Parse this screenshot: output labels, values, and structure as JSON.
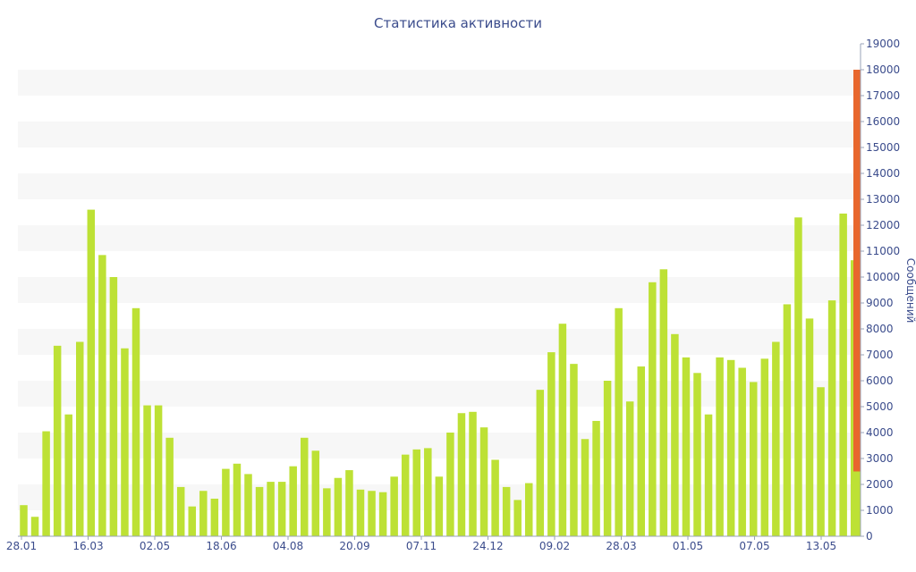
{
  "chart_data": {
    "type": "bar",
    "title": "Статистика активности",
    "ylabel": "Сообщений",
    "ylim": [
      0,
      19000
    ],
    "y_ticks": [
      0,
      1000,
      2000,
      3000,
      4000,
      5000,
      6000,
      7000,
      8000,
      9000,
      10000,
      11000,
      12000,
      13000,
      14000,
      15000,
      16000,
      17000,
      18000,
      19000
    ],
    "x_tick_labels": [
      "28.01",
      "16.03",
      "02.05",
      "18.06",
      "04.08",
      "20.09",
      "07.11",
      "24.12",
      "09.02",
      "28.03",
      "01.05",
      "07.05",
      "13.05"
    ],
    "bar_color": "#bde135",
    "grid": "alternating horizontal bands",
    "values": [
      1200,
      750,
      4050,
      7350,
      4700,
      7500,
      12600,
      10850,
      10000,
      7250,
      8800,
      5050,
      5050,
      3800,
      1900,
      1150,
      1750,
      1450,
      2600,
      2800,
      2400,
      1900,
      2100,
      2100,
      2700,
      3800,
      3300,
      1850,
      2250,
      2550,
      1800,
      1750,
      1700,
      2300,
      3150,
      3350,
      3400,
      2300,
      4000,
      4750,
      4800,
      4200,
      2950,
      1900,
      1400,
      2050,
      5650,
      7100,
      8200,
      6650,
      3750,
      4450,
      6000,
      8800,
      5200,
      6550,
      9800,
      10300,
      7800,
      6900,
      6300,
      4700,
      6900,
      6800,
      6500,
      5950,
      6850,
      7500,
      8950,
      12300,
      8400,
      5750,
      9100,
      12450,
      10650
    ],
    "highlight": {
      "color": "#e8672d",
      "range": [
        2500,
        18000
      ],
      "base_value": 2500,
      "base_color": "#bde135"
    }
  }
}
